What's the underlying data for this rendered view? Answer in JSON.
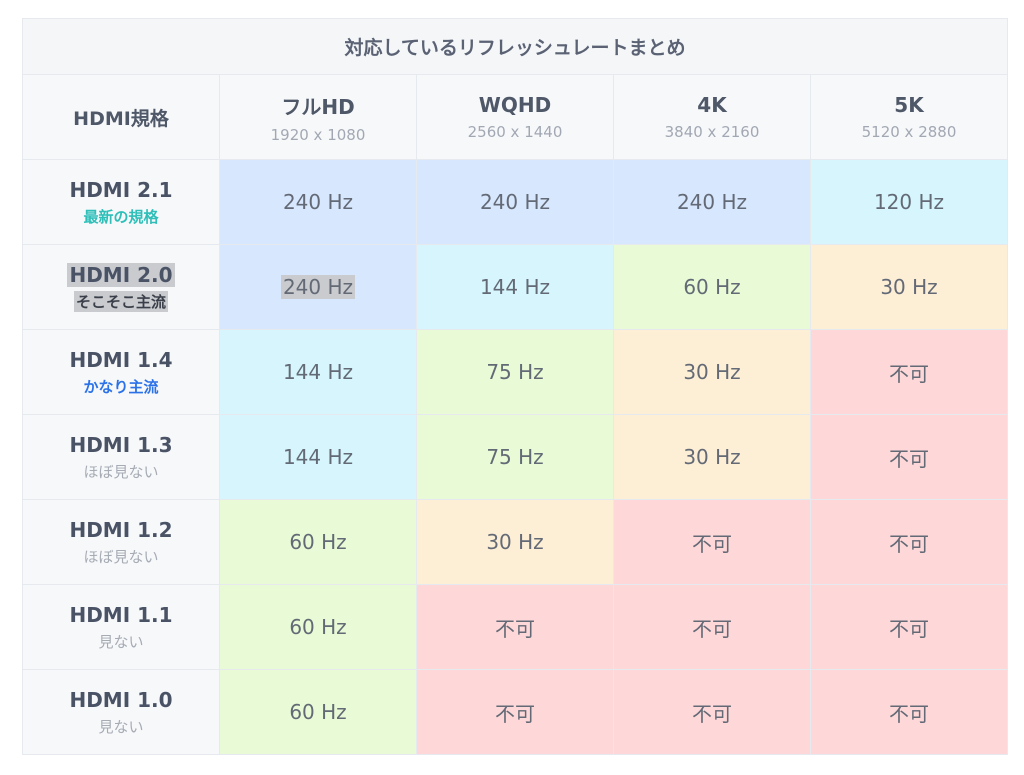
{
  "title": "対応しているリフレッシュレートまとめ",
  "header": {
    "version_label": "HDMI規格",
    "resolutions": [
      {
        "name": "フルHD",
        "size": "1920 x 1080"
      },
      {
        "name": "WQHD",
        "size": "2560 x 1440"
      },
      {
        "name": "4K",
        "size": "3840 x 2160"
      },
      {
        "name": "5K",
        "size": "5120 x 2880"
      }
    ]
  },
  "colors": {
    "blue": "#d7e7fd",
    "cyan": "#d6f5fc",
    "green": "#e8fbd6",
    "orange": "#fdeed6",
    "red": "#fed8d9",
    "note_teal": "#2fbfb8",
    "note_blue": "#2b72e8",
    "note_grey": "#a6abb4"
  },
  "rows": [
    {
      "version": "HDMI 2.1",
      "note": "最新の規格",
      "cells": [
        "240 Hz",
        "240 Hz",
        "240 Hz",
        "120 Hz"
      ]
    },
    {
      "version": "HDMI 2.0",
      "note": "そこそこ主流",
      "cells": [
        "240 Hz",
        "144 Hz",
        "60 Hz",
        "30 Hz"
      ]
    },
    {
      "version": "HDMI 1.4",
      "note": "かなり主流",
      "cells": [
        "144 Hz",
        "75 Hz",
        "30 Hz",
        "不可"
      ]
    },
    {
      "version": "HDMI 1.3",
      "note": "ほぼ見ない",
      "cells": [
        "144 Hz",
        "75 Hz",
        "30 Hz",
        "不可"
      ]
    },
    {
      "version": "HDMI 1.2",
      "note": "ほぼ見ない",
      "cells": [
        "60 Hz",
        "30 Hz",
        "不可",
        "不可"
      ]
    },
    {
      "version": "HDMI 1.1",
      "note": "見ない",
      "cells": [
        "60 Hz",
        "不可",
        "不可",
        "不可"
      ]
    },
    {
      "version": "HDMI 1.0",
      "note": "見ない",
      "cells": [
        "60 Hz",
        "不可",
        "不可",
        "不可"
      ]
    }
  ]
}
